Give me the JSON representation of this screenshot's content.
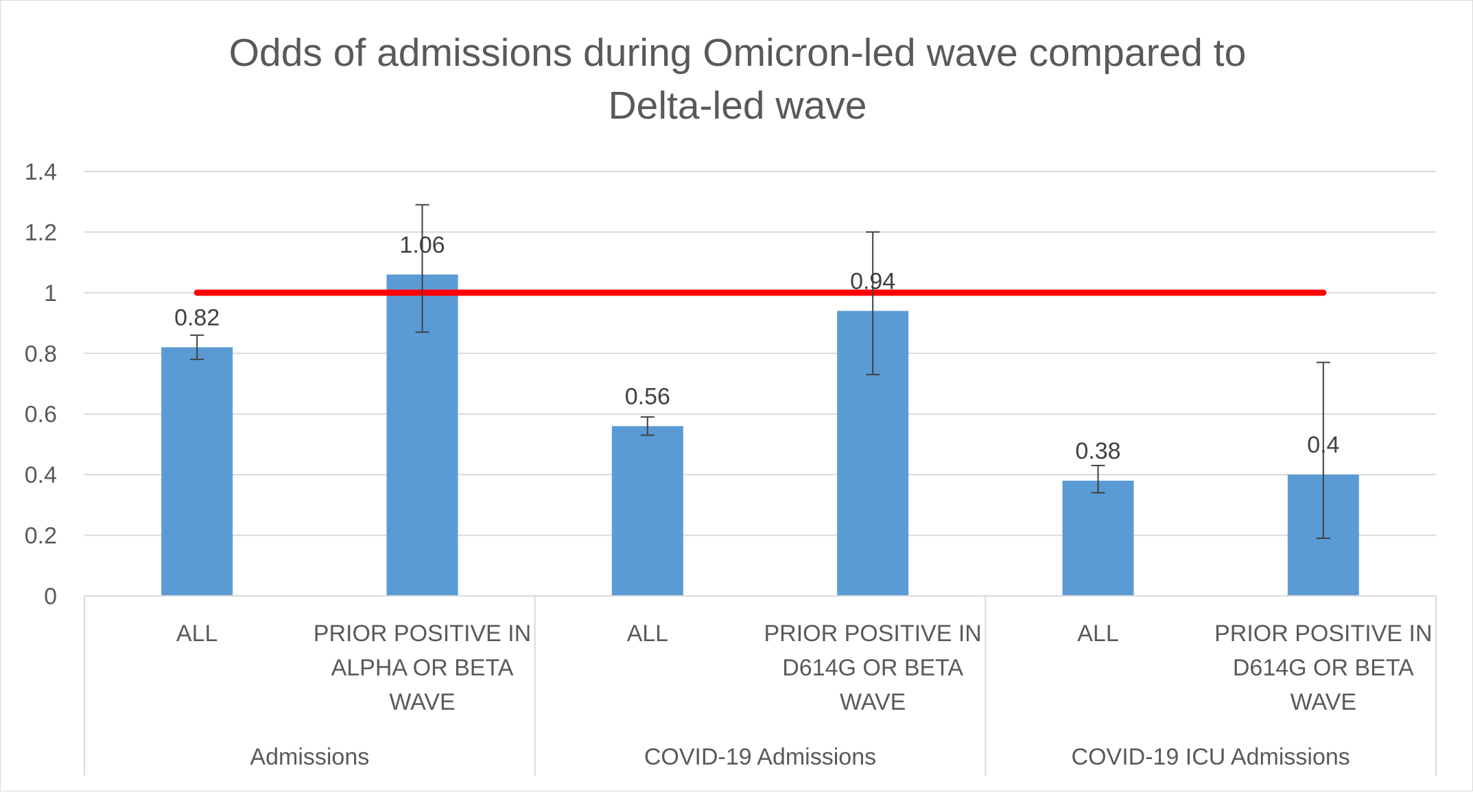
{
  "chart_data": {
    "type": "bar",
    "title_lines": [
      "Odds of admissions during Omicron-led wave compared to",
      "Delta-led wave"
    ],
    "xlabel": "",
    "ylabel": "",
    "ylim": [
      0,
      1.4
    ],
    "yticks": [
      0,
      0.2,
      0.4,
      0.6,
      0.8,
      1,
      1.2,
      1.4
    ],
    "ytick_labels": [
      "0",
      "0.2",
      "0.4",
      "0.6",
      "0.8",
      "1",
      "1.2",
      "1.4"
    ],
    "grid": true,
    "bar_color": "#5b9bd5",
    "reference_line": {
      "y": 1,
      "color": "#ff0000"
    },
    "groups": [
      {
        "label": "Admissions",
        "categories": [
          0,
          1
        ]
      },
      {
        "label": "COVID-19 Admissions",
        "categories": [
          2,
          3
        ]
      },
      {
        "label": "COVID-19 ICU Admissions",
        "categories": [
          4,
          5
        ]
      }
    ],
    "categories": [
      [
        "ALL"
      ],
      [
        "PRIOR POSITIVE IN",
        "ALPHA OR BETA",
        "WAVE"
      ],
      [
        "ALL"
      ],
      [
        "PRIOR POSITIVE IN",
        "D614G OR BETA",
        "WAVE"
      ],
      [
        "ALL"
      ],
      [
        "PRIOR POSITIVE IN",
        "D614G OR BETA",
        "WAVE"
      ]
    ],
    "values": [
      0.82,
      1.06,
      0.56,
      0.94,
      0.38,
      0.4
    ],
    "value_labels": [
      "0.82",
      "1.06",
      "0.56",
      "0.94",
      "0.38",
      "0.4"
    ],
    "error_low": [
      0.78,
      0.87,
      0.53,
      0.73,
      0.34,
      0.19
    ],
    "error_high": [
      0.86,
      1.29,
      0.59,
      1.2,
      0.43,
      0.77
    ]
  }
}
